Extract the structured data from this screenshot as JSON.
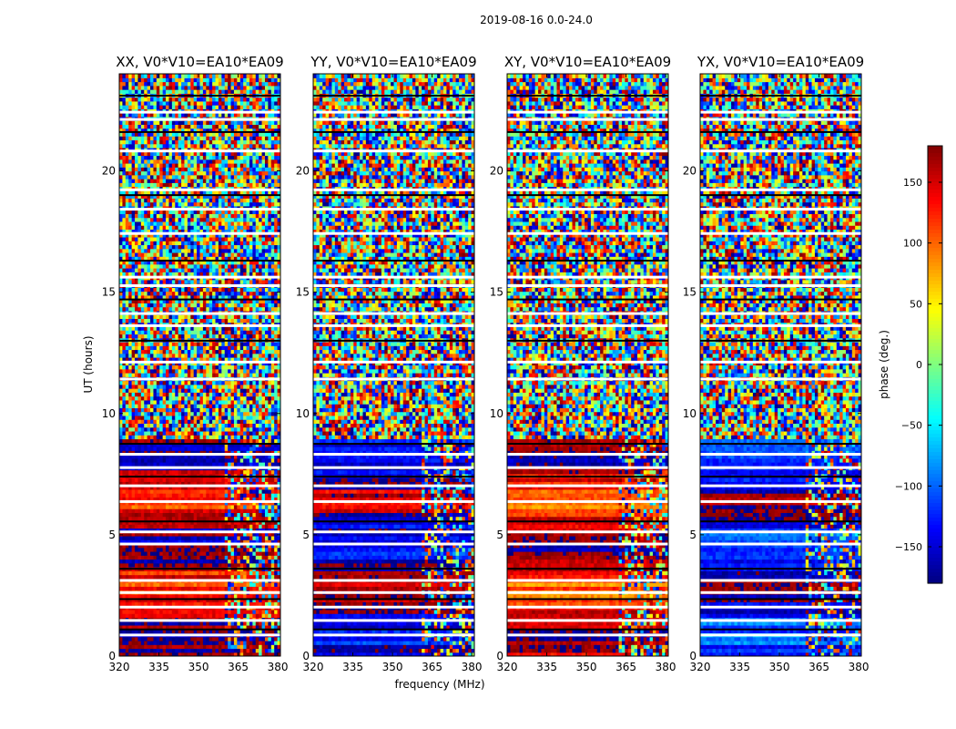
{
  "chart_data": {
    "type": "heatmap",
    "suptitle": "2019-08-16 0.0-24.0",
    "xlabel": "frequency (MHz)",
    "ylabel": "UT (hours)",
    "xlim": [
      320,
      381
    ],
    "ylim": [
      0,
      24
    ],
    "xticks": [
      320,
      335,
      350,
      365,
      380
    ],
    "yticks": [
      0,
      5,
      10,
      15,
      20
    ],
    "panels": [
      {
        "title": "XX, V0*V10=EA10*EA09",
        "base_phase": 155,
        "lowband_end_hour": 8.9,
        "rfi_band_start_mhz": 361
      },
      {
        "title": "YY, V0*V10=EA10*EA09",
        "base_phase": -165,
        "lowband_end_hour": 8.9,
        "rfi_band_start_mhz": 362
      },
      {
        "title": "XY, V0*V10=EA10*EA09",
        "base_phase": 140,
        "lowband_end_hour": 8.9,
        "rfi_band_start_mhz": 363
      },
      {
        "title": "YX, V0*V10=EA10*EA09",
        "base_phase": -140,
        "lowband_end_hour": 8.9,
        "rfi_band_start_mhz": 361
      }
    ],
    "flagged_hours": [
      0.85,
      1.1,
      1.45,
      2.0,
      2.35,
      2.6,
      3.1,
      3.6,
      4.6,
      5.1,
      5.55,
      6.35,
      7.0,
      7.4,
      7.75,
      8.3,
      8.75,
      11.4,
      12.1,
      13.0,
      13.6,
      14.1,
      14.7,
      15.25,
      15.6,
      16.3,
      17.4,
      18.4,
      19.0,
      19.2,
      20.8,
      21.6,
      22.1,
      22.4,
      23.1
    ],
    "colorbar": {
      "label": "phase (deg.)",
      "range": [
        -180,
        180
      ],
      "ticks": [
        150,
        100,
        50,
        0,
        -50,
        -100,
        -150
      ],
      "tick_labels": [
        "150",
        "100",
        "50",
        "0",
        "−50",
        "−100",
        "−150"
      ]
    }
  }
}
